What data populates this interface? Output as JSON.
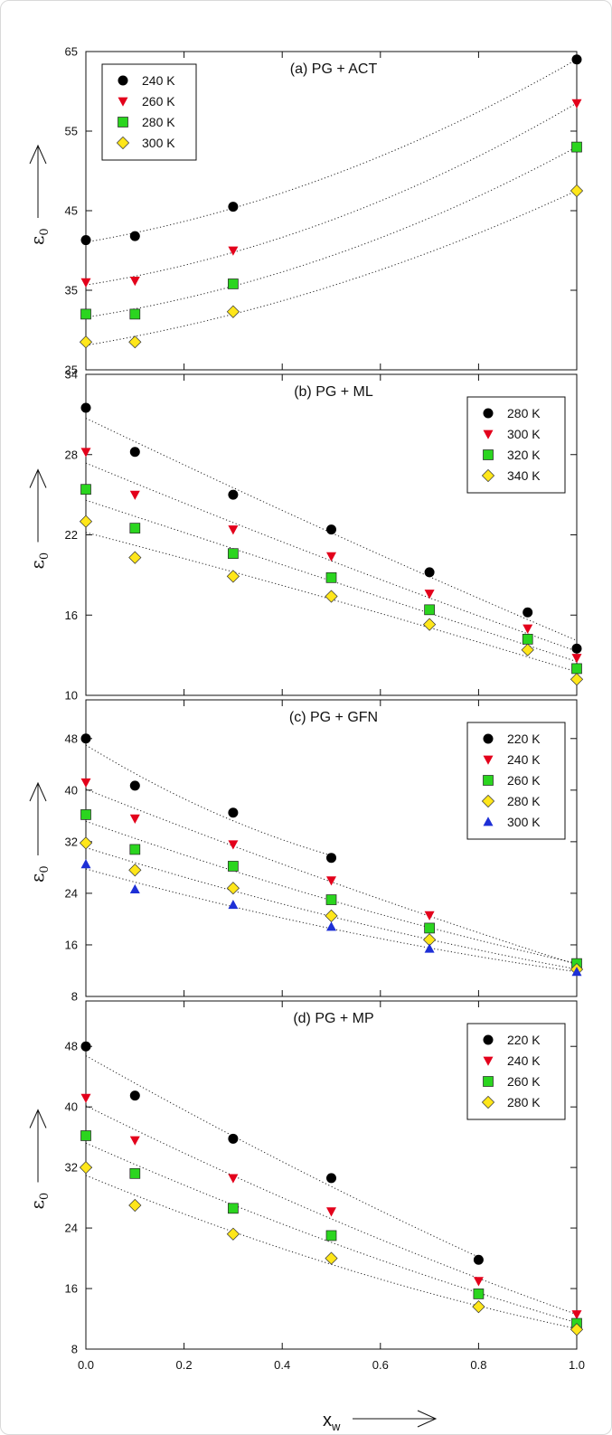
{
  "colors": {
    "black": "#000000",
    "red": "#e3001b",
    "green": "#2bd51f",
    "yellow": "#ffe61a",
    "blue": "#1d2fd6"
  },
  "shared_axes": {
    "xlabel": "x",
    "xlabel_sub": "w",
    "ylabel": "ε",
    "ylabel_sub": "0",
    "xlim": [
      0,
      1
    ],
    "xticks": [
      "0.0",
      "0.2",
      "0.4",
      "0.6",
      "0.8",
      "1.0"
    ]
  },
  "chart_data": [
    {
      "type": "scatter",
      "title": "(a) PG + ACT",
      "legend": "top-left",
      "ylim": [
        25,
        65
      ],
      "yticks": [
        25,
        35,
        45,
        55,
        65
      ],
      "fit_curves": true,
      "x": [
        0.0,
        0.1,
        0.3,
        1.0
      ],
      "series": [
        {
          "name": "240 K",
          "marker": "circle",
          "color": "black",
          "values": [
            41.3,
            41.8,
            45.5,
            64.0
          ]
        },
        {
          "name": "260 K",
          "marker": "triangle-down",
          "color": "red",
          "values": [
            36.0,
            36.2,
            40.0,
            58.5
          ]
        },
        {
          "name": "280 K",
          "marker": "square",
          "color": "green",
          "values": [
            32.0,
            32.0,
            35.8,
            53.0
          ]
        },
        {
          "name": "300 K",
          "marker": "diamond",
          "color": "yellow",
          "values": [
            28.5,
            28.5,
            32.3,
            47.5
          ]
        }
      ]
    },
    {
      "type": "scatter",
      "title": "(b) PG + ML",
      "legend": "top-right",
      "ylim": [
        10,
        34
      ],
      "yticks": [
        10,
        16,
        22,
        28,
        34
      ],
      "fit_curves": true,
      "x": [
        0.0,
        0.1,
        0.3,
        0.5,
        0.7,
        0.9,
        1.0
      ],
      "series": [
        {
          "name": "280 K",
          "marker": "circle",
          "color": "black",
          "values": [
            31.5,
            28.2,
            25.0,
            22.4,
            19.2,
            16.2,
            13.5
          ]
        },
        {
          "name": "300 K",
          "marker": "triangle-down",
          "color": "red",
          "values": [
            28.2,
            25.0,
            22.4,
            20.4,
            17.6,
            15.0,
            12.8
          ]
        },
        {
          "name": "320 K",
          "marker": "square",
          "color": "green",
          "values": [
            25.4,
            22.5,
            20.6,
            18.8,
            16.4,
            14.2,
            12.0
          ]
        },
        {
          "name": "340 K",
          "marker": "diamond",
          "color": "yellow",
          "values": [
            23.0,
            20.3,
            18.9,
            17.4,
            15.3,
            13.4,
            11.2
          ]
        }
      ]
    },
    {
      "type": "scatter",
      "title": "(c) PG + GFN",
      "legend": "top-right",
      "ylim": [
        8,
        54
      ],
      "yticks": [
        8,
        16,
        24,
        32,
        40,
        48
      ],
      "fit_curves": true,
      "x": [
        0.0,
        0.1,
        0.3,
        0.5,
        0.7,
        1.0
      ],
      "series": [
        {
          "name": "220 K",
          "marker": "circle",
          "color": "black",
          "values": [
            48.0,
            40.7,
            36.5,
            29.5,
            null,
            null
          ]
        },
        {
          "name": "240 K",
          "marker": "triangle-down",
          "color": "red",
          "values": [
            41.2,
            35.6,
            31.6,
            26.0,
            20.6,
            12.8
          ]
        },
        {
          "name": "260 K",
          "marker": "square",
          "color": "green",
          "values": [
            36.2,
            30.8,
            28.2,
            23.0,
            18.6,
            13.1
          ]
        },
        {
          "name": "280 K",
          "marker": "diamond",
          "color": "yellow",
          "values": [
            31.8,
            27.6,
            24.8,
            20.5,
            16.8,
            12.2
          ]
        },
        {
          "name": "300 K",
          "marker": "triangle-up",
          "color": "blue",
          "values": [
            28.5,
            24.6,
            22.2,
            18.8,
            15.4,
            11.8
          ]
        }
      ]
    },
    {
      "type": "scatter",
      "title": "(d) PG + MP",
      "legend": "top-right",
      "ylim": [
        8,
        54
      ],
      "yticks": [
        8,
        16,
        24,
        32,
        40,
        48
      ],
      "fit_curves": true,
      "x": [
        0.0,
        0.1,
        0.3,
        0.5,
        0.8,
        1.0
      ],
      "series": [
        {
          "name": "220 K",
          "marker": "circle",
          "color": "black",
          "values": [
            48.0,
            41.5,
            35.8,
            30.6,
            19.8,
            null
          ]
        },
        {
          "name": "240 K",
          "marker": "triangle-down",
          "color": "red",
          "values": [
            41.2,
            35.6,
            30.6,
            26.2,
            17.0,
            12.6
          ]
        },
        {
          "name": "260 K",
          "marker": "square",
          "color": "green",
          "values": [
            36.2,
            31.2,
            26.6,
            23.0,
            15.3,
            11.4
          ]
        },
        {
          "name": "280 K",
          "marker": "diamond",
          "color": "yellow",
          "values": [
            32.0,
            27.0,
            23.2,
            20.0,
            13.6,
            10.6
          ]
        }
      ]
    }
  ]
}
